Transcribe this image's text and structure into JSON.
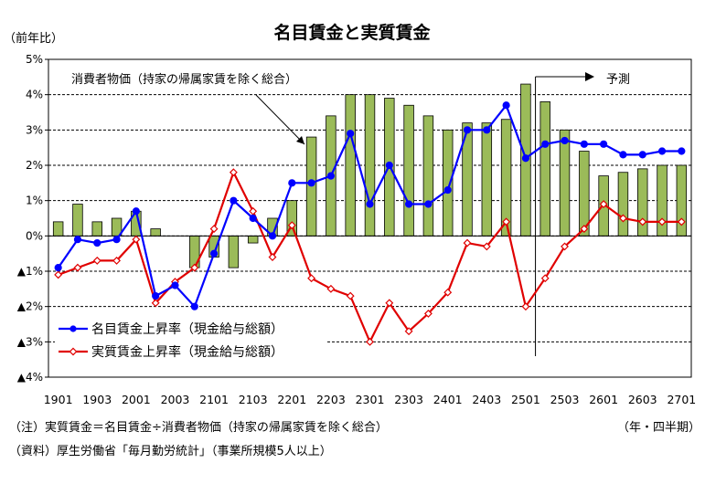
{
  "chart_data": {
    "type": "bar",
    "title": "名目賃金と実質賃金",
    "ylabel": "（前年比）",
    "xlabel": "（年・四半期）",
    "ylim": [
      -4,
      5
    ],
    "yticks": [
      {
        "value": 5,
        "label": "5%"
      },
      {
        "value": 4,
        "label": "4%"
      },
      {
        "value": 3,
        "label": "3%"
      },
      {
        "value": 2,
        "label": "2%"
      },
      {
        "value": 1,
        "label": "1%"
      },
      {
        "value": 0,
        "label": "0%"
      },
      {
        "value": -1,
        "label": "▲1%"
      },
      {
        "value": -2,
        "label": "▲2%"
      },
      {
        "value": -3,
        "label": "▲3%"
      },
      {
        "value": -4,
        "label": "▲4%"
      }
    ],
    "grid": true,
    "categories": [
      "1901",
      "1902",
      "1903",
      "1904",
      "2001",
      "2002",
      "2003",
      "2004",
      "2101",
      "2102",
      "2103",
      "2104",
      "2201",
      "2202",
      "2203",
      "2204",
      "2301",
      "2302",
      "2303",
      "2304",
      "2401",
      "2402",
      "2403",
      "2404",
      "2501",
      "2502",
      "2503",
      "2504",
      "2601",
      "2602",
      "2603",
      "2604",
      "2701"
    ],
    "xtick_labels": [
      "1901",
      "1903",
      "2001",
      "2003",
      "2101",
      "2103",
      "2201",
      "2203",
      "2301",
      "2303",
      "2401",
      "2403",
      "2501",
      "2503",
      "2601",
      "2603",
      "2701"
    ],
    "series": [
      {
        "name": "消費者物価（持家の帰属家賃を除く総合）",
        "kind": "bar",
        "color": "#9bbb59",
        "values": [
          0.4,
          0.9,
          0.4,
          0.5,
          0.7,
          0.2,
          0.0,
          -0.9,
          -0.6,
          -0.9,
          -0.2,
          0.5,
          1.0,
          2.8,
          3.4,
          4.0,
          4.0,
          3.9,
          3.7,
          3.4,
          3.0,
          3.2,
          3.2,
          3.3,
          4.3,
          3.8,
          3.0,
          2.4,
          1.7,
          1.8,
          1.9,
          2.0,
          2.0
        ]
      },
      {
        "name": "名目賃金上昇率（現金給与総額）",
        "kind": "line",
        "color": "#0000ff",
        "values": [
          -0.9,
          -0.1,
          -0.2,
          -0.1,
          0.7,
          -1.7,
          -1.4,
          -2.0,
          -0.5,
          1.0,
          0.5,
          0.0,
          1.5,
          1.5,
          1.7,
          2.9,
          0.9,
          2.0,
          0.9,
          0.9,
          1.3,
          3.0,
          3.0,
          3.7,
          2.2,
          2.6,
          2.7,
          2.6,
          2.6,
          2.3,
          2.3,
          2.4,
          2.4
        ]
      },
      {
        "name": "実質賃金上昇率（現金給与総額）",
        "kind": "line",
        "color": "#e00000",
        "values": [
          -1.1,
          -0.9,
          -0.7,
          -0.7,
          -0.1,
          -1.9,
          -1.3,
          -0.9,
          0.2,
          1.8,
          0.7,
          -0.6,
          0.3,
          -1.2,
          -1.5,
          -1.7,
          -3.0,
          -1.9,
          -2.7,
          -2.2,
          -1.6,
          -0.2,
          -0.3,
          0.4,
          -2.0,
          -1.2,
          -0.3,
          0.2,
          0.9,
          0.5,
          0.4,
          0.4,
          0.4
        ]
      }
    ],
    "legend_position": "bottom-left",
    "annotations": [
      {
        "text": "消費者物価（持家の帰属家賃を除く総合）"
      },
      {
        "text": "予測"
      }
    ]
  },
  "footnotes": {
    "note": "（注）実質賃金＝名目賃金÷消費者物価（持家の帰属家賃を除く総合）",
    "source": "（資料）厚生労働省「毎月勤労統計」（事業所規模5人以上）"
  }
}
